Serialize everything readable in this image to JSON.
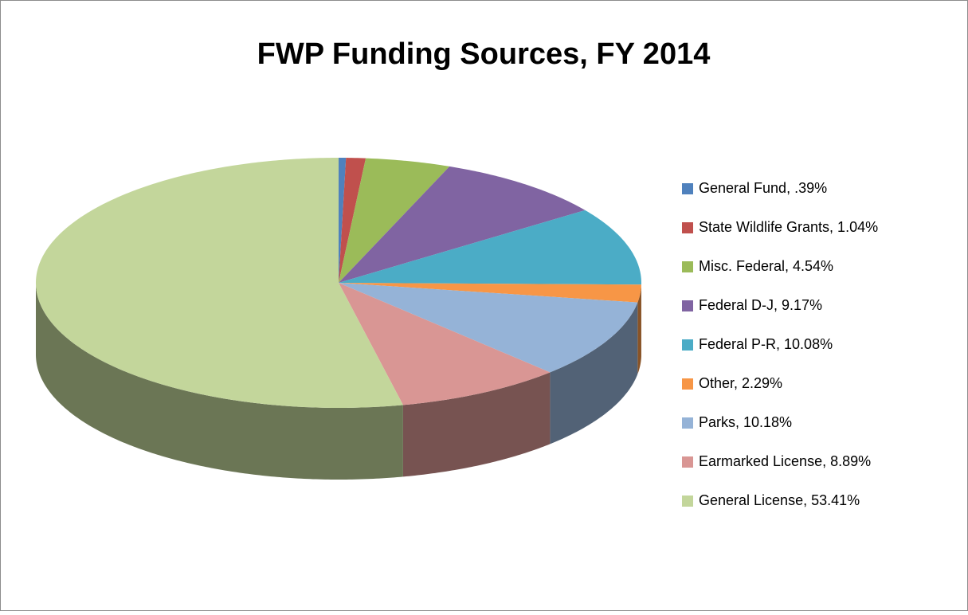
{
  "chart_data": {
    "type": "pie",
    "title": "FWP Funding Sources, FY 2014",
    "categories": [
      "General Fund, .39%",
      "State Wildlife Grants, 1.04%",
      "Misc. Federal, 4.54%",
      "Federal D-J, 9.17%",
      "Federal P-R, 10.08%",
      "Other, 2.29%",
      "Parks, 10.18%",
      "Earmarked License, 8.89%",
      "General License, 53.41%"
    ],
    "values": [
      0.39,
      1.04,
      4.54,
      9.17,
      10.08,
      2.29,
      10.18,
      8.89,
      53.41
    ],
    "colors": [
      "#4f81bd",
      "#c0504d",
      "#9bbb59",
      "#8064a2",
      "#4bacc6",
      "#f79646",
      "#95b3d7",
      "#d99694",
      "#c3d69b"
    ],
    "legend": "right"
  }
}
